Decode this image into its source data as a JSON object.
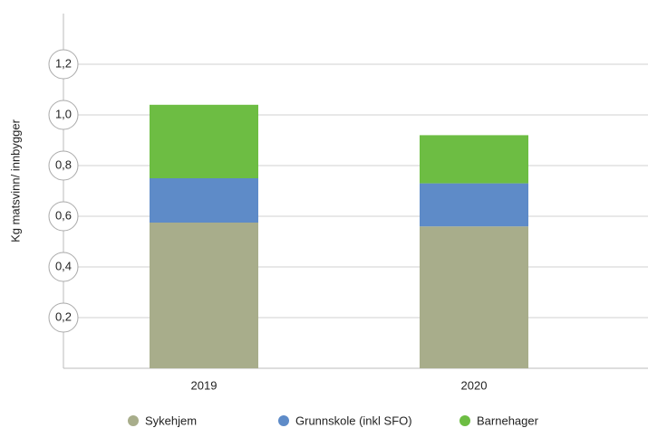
{
  "chart_data": {
    "type": "stacked_bar",
    "y_label": "Kg matsvinn/ innbygger",
    "categories": [
      "2019",
      "2020"
    ],
    "series": [
      {
        "name": "Sykehjem",
        "color": "#a8ad8b",
        "values": [
          0.575,
          0.56
        ]
      },
      {
        "name": "Grunnskole (inkl SFO)",
        "color": "#5e8bc8",
        "values": [
          0.175,
          0.17
        ]
      },
      {
        "name": "Barnehager",
        "color": "#6dbd43",
        "values": [
          0.29,
          0.19
        ]
      }
    ],
    "ylim": [
      0,
      1.4
    ],
    "yticks": [
      {
        "value": 0.2,
        "label": "0,2"
      },
      {
        "value": 0.4,
        "label": "0,4"
      },
      {
        "value": 0.6,
        "label": "0,6"
      },
      {
        "value": 0.8,
        "label": "0,8"
      },
      {
        "value": 1.0,
        "label": "1,0"
      },
      {
        "value": 1.2,
        "label": "1,2"
      }
    ],
    "grid": true
  }
}
